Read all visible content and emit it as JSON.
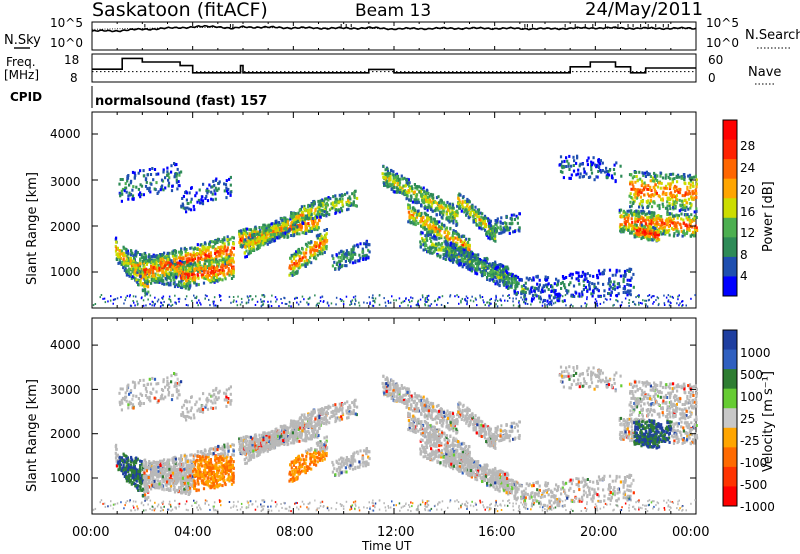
{
  "header": {
    "station": "Saskatoon (fitACF)",
    "beam": "Beam 13",
    "date": "24/May/2011"
  },
  "left_labels": {
    "nsky": "N.Sky",
    "freq_line1": "Freq.",
    "freq_line2": "[MHz]",
    "cpid": "CPID"
  },
  "right_labels": {
    "nsearch": "N.Search",
    "nave": "Nave"
  },
  "cpid_text": "normalsound (fast) 157",
  "colors": {
    "power_scale": [
      "#0000ff",
      "#1f4fb0",
      "#2e8b57",
      "#4caf50",
      "#ccdd00",
      "#ffa500",
      "#ff6600",
      "#ff2200",
      "#ff0000"
    ],
    "velocity_scale": [
      "#1f3fa0",
      "#3060c0",
      "#2e7d32",
      "#66cc33",
      "#c8c8c8",
      "#ffa500",
      "#ff6a00",
      "#ff3300",
      "#ff0000"
    ],
    "ground_scatter": "#b8b8b8"
  },
  "chart_data": [
    {
      "type": "line",
      "name": "noise-panel",
      "y_ticks_left": [
        "10^5",
        "10^0"
      ],
      "y_ticks_right": [
        "10^5",
        "10^0"
      ],
      "xlim": [
        0,
        24
      ],
      "series": [
        {
          "x": [
            0,
            1,
            2,
            3,
            4,
            5,
            5.6,
            6,
            8,
            10,
            11,
            12,
            14,
            16,
            18,
            20,
            22,
            24
          ],
          "values": [
            3.5,
            3.6,
            3.9,
            4.1,
            4.4,
            4.5,
            4.0,
            4.4,
            4.2,
            4.1,
            4.2,
            4.0,
            4.1,
            4.1,
            4.0,
            4.2,
            4.1,
            4.1
          ]
        },
        {
          "x": [
            0,
            4,
            8,
            12,
            16,
            20,
            24
          ],
          "values": [
            3.9,
            4.3,
            4.2,
            4.0,
            4.1,
            4.1,
            4.0
          ]
        }
      ]
    },
    {
      "type": "line",
      "name": "frequency-panel",
      "y_ticks_left": [
        "18",
        "8"
      ],
      "y_ticks_right": [
        "60",
        "0"
      ],
      "xlim": [
        0,
        24
      ],
      "series": [
        {
          "x": [
            0,
            1,
            1.2,
            2,
            3.5,
            4,
            5.6,
            5.9,
            6,
            10.6,
            11,
            12,
            17.4,
            19,
            19.8,
            20.8,
            21.4,
            22,
            24
          ],
          "values": [
            12.5,
            12.5,
            17,
            15.5,
            14,
            11,
            11,
            14,
            11,
            11,
            12.4,
            11,
            11,
            13.5,
            15.5,
            13.5,
            11,
            13,
            13
          ]
        },
        {
          "x": [
            0,
            24
          ],
          "values": [
            11.5,
            11.5
          ]
        }
      ]
    },
    {
      "type": "heatmap",
      "name": "power-panel",
      "ylabel": "Slant Range [km]",
      "yticks": [
        1000,
        2000,
        3000,
        4000
      ],
      "ylim": [
        200,
        4600
      ],
      "colorbar_label": "Power [dB]",
      "colorbar_ticks": [
        4,
        8,
        12,
        16,
        20,
        24,
        28
      ]
    },
    {
      "type": "heatmap",
      "name": "velocity-panel",
      "ylabel": "Slant Range [km]",
      "yticks": [
        1000,
        2000,
        3000,
        4000
      ],
      "ylim": [
        200,
        4600
      ],
      "colorbar_label": "Velocity [m s⁻¹]",
      "colorbar_ticks": [
        1000,
        500,
        100,
        25,
        -25,
        -100,
        -500,
        -1000
      ]
    }
  ],
  "x_axis": {
    "ticks": [
      "00:00",
      "04:00",
      "08:00",
      "12:00",
      "16:00",
      "20:00",
      "00:00"
    ],
    "label": "Time UT"
  }
}
